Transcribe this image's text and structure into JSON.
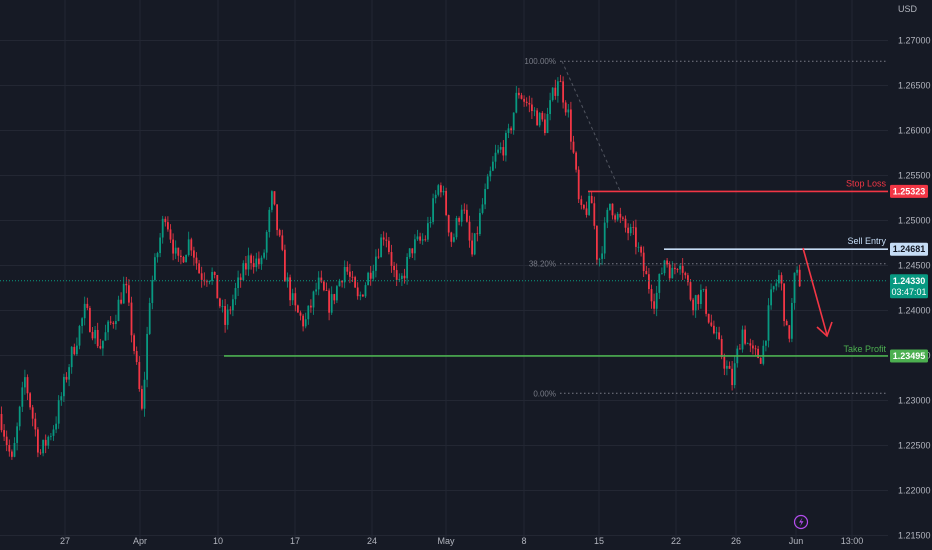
{
  "chart_data": {
    "type": "candlestick",
    "currency": "USD",
    "y_ticks": [
      "1.27000",
      "1.26500",
      "1.26000",
      "1.25500",
      "1.25000",
      "1.24500",
      "1.24000",
      "1.23500",
      "1.23000",
      "1.22500",
      "1.22000",
      "1.21500"
    ],
    "x_ticks": [
      "27",
      "Apr",
      "10",
      "17",
      "24",
      "May",
      "8",
      "15",
      "22",
      "26",
      "Jun",
      "13:00"
    ],
    "ylim": [
      1.2145,
      1.2745
    ],
    "price_path": [
      [
        0,
        1.2285
      ],
      [
        12,
        1.223
      ],
      [
        25,
        1.2325
      ],
      [
        40,
        1.224
      ],
      [
        55,
        1.2275
      ],
      [
        70,
        1.2345
      ],
      [
        85,
        1.24
      ],
      [
        100,
        1.236
      ],
      [
        115,
        1.2395
      ],
      [
        125,
        1.243
      ],
      [
        135,
        1.235
      ],
      [
        142,
        1.2285
      ],
      [
        150,
        1.242
      ],
      [
        165,
        1.251
      ],
      [
        178,
        1.245
      ],
      [
        190,
        1.248
      ],
      [
        200,
        1.244
      ],
      [
        212,
        1.244
      ],
      [
        225,
        1.2385
      ],
      [
        235,
        1.242
      ],
      [
        250,
        1.246
      ],
      [
        262,
        1.245
      ],
      [
        272,
        1.2525
      ],
      [
        285,
        1.244
      ],
      [
        295,
        1.24
      ],
      [
        305,
        1.2385
      ],
      [
        318,
        1.243
      ],
      [
        330,
        1.2405
      ],
      [
        345,
        1.245
      ],
      [
        358,
        1.241
      ],
      [
        372,
        1.245
      ],
      [
        385,
        1.249
      ],
      [
        398,
        1.242
      ],
      [
        412,
        1.247
      ],
      [
        425,
        1.248
      ],
      [
        440,
        1.2545
      ],
      [
        452,
        1.2475
      ],
      [
        462,
        1.252
      ],
      [
        472,
        1.246
      ],
      [
        482,
        1.2515
      ],
      [
        495,
        1.257
      ],
      [
        508,
        1.259
      ],
      [
        518,
        1.2645
      ],
      [
        530,
        1.2625
      ],
      [
        545,
        1.2605
      ],
      [
        558,
        1.266
      ],
      [
        568,
        1.262
      ],
      [
        575,
        1.256
      ],
      [
        580,
        1.2505
      ],
      [
        592,
        1.252
      ],
      [
        598,
        1.245
      ],
      [
        610,
        1.252
      ],
      [
        622,
        1.2495
      ],
      [
        635,
        1.248
      ],
      [
        645,
        1.244
      ],
      [
        655,
        1.241
      ],
      [
        665,
        1.246
      ],
      [
        672,
        1.244
      ],
      [
        680,
        1.246
      ],
      [
        692,
        1.241
      ],
      [
        702,
        1.242
      ],
      [
        712,
        1.238
      ],
      [
        722,
        1.235
      ],
      [
        732,
        1.232
      ],
      [
        742,
        1.238
      ],
      [
        752,
        1.235
      ],
      [
        762,
        1.235
      ],
      [
        772,
        1.242
      ],
      [
        780,
        1.244
      ],
      [
        788,
        1.236
      ],
      [
        795,
        1.244
      ],
      [
        800,
        1.2433
      ]
    ],
    "levels": [
      {
        "name": "Stop Loss",
        "value": 1.25323,
        "label": "1.25323",
        "color": "#f23645"
      },
      {
        "name": "Sell Entry",
        "value": 1.24681,
        "label": "1.24681",
        "color": "#c5dcf5"
      },
      {
        "name": "Take Profit",
        "value": 1.23495,
        "label": "1.23495",
        "color": "#4caf50"
      }
    ],
    "current_price": {
      "label": "1.24330",
      "countdown": "03:47:01",
      "value": 1.2433,
      "color": "#089981"
    },
    "fib_levels": [
      {
        "label": "100.00%",
        "value": 1.2677
      },
      {
        "label": "38.20%",
        "value": 1.2452
      },
      {
        "label": "0.00%",
        "value": 1.2308
      }
    ],
    "colors": {
      "up": "#089981",
      "down": "#f23645",
      "grid": "#232733",
      "background": "#161a25"
    }
  }
}
